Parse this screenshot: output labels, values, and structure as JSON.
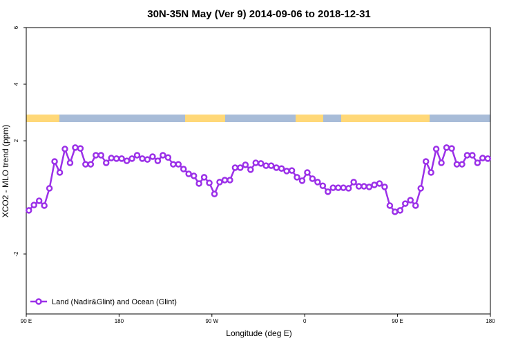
{
  "chart_data": {
    "type": "line",
    "title": "30N-35N May (Ver 9)   2014-09-06 to 2018-12-31",
    "x_label": "Longitude (deg E)",
    "y_label": "XCO2 - MLO trend (ppm)",
    "x": [
      92.5,
      97.5,
      102.5,
      107.5,
      112.5,
      117.5,
      122.5,
      127.5,
      132.5,
      137.5,
      142.5,
      147.5,
      152.5,
      157.5,
      162.5,
      167.5,
      172.5,
      177.5,
      182.5,
      187.5,
      192.5,
      197.5,
      202.5,
      207.5,
      212.5,
      217.5,
      222.5,
      227.5,
      232.5,
      237.5,
      242.5,
      247.5,
      252.5,
      257.5,
      262.5,
      267.5,
      272.5,
      277.5,
      282.5,
      287.5,
      292.5,
      297.5,
      302.5,
      307.5,
      312.5,
      317.5,
      322.5,
      327.5,
      332.5,
      337.5,
      342.5,
      347.5,
      352.5,
      357.5,
      362.5,
      367.5,
      372.5,
      377.5,
      382.5,
      387.5,
      392.5,
      397.5,
      402.5,
      407.5,
      412.5,
      417.5,
      422.5,
      427.5,
      432.5,
      437.5,
      442.5,
      447.5,
      452.5,
      457.5,
      462.5,
      467.5,
      472.5,
      477.5,
      482.5,
      487.5,
      492.5,
      497.5,
      502.5,
      507.5,
      512.5,
      517.5,
      522.5,
      527.5,
      532.5,
      537.5
    ],
    "series": [
      {
        "name": "Land (Nadir&Glint) and Ocean (Glint)",
        "color": "#9b30e8",
        "values": [
          -0.46,
          -0.27,
          -0.12,
          -0.29,
          0.32,
          1.27,
          0.88,
          1.71,
          1.22,
          1.76,
          1.73,
          1.17,
          1.17,
          1.49,
          1.49,
          1.22,
          1.39,
          1.37,
          1.37,
          1.29,
          1.37,
          1.49,
          1.37,
          1.34,
          1.44,
          1.29,
          1.49,
          1.41,
          1.17,
          1.17,
          1.0,
          0.83,
          0.76,
          0.49,
          0.71,
          0.51,
          0.12,
          0.54,
          0.61,
          0.61,
          1.05,
          1.05,
          1.15,
          0.98,
          1.22,
          1.2,
          1.12,
          1.12,
          1.05,
          1.02,
          0.93,
          0.95,
          0.71,
          0.59,
          0.88,
          0.66,
          0.54,
          0.41,
          0.2,
          0.34,
          0.34,
          0.34,
          0.32,
          0.54,
          0.39,
          0.39,
          0.37,
          0.44,
          0.49,
          0.37,
          -0.29,
          -0.51,
          -0.46,
          -0.22,
          -0.1,
          -0.29,
          0.32,
          1.27,
          0.88,
          1.71,
          1.22,
          1.76,
          1.73,
          1.17,
          1.17,
          1.49,
          1.49,
          1.22,
          1.39,
          1.37
        ]
      }
    ],
    "xlim": [
      90,
      540
    ],
    "xticks": [
      {
        "value": 90,
        "label": "90 E"
      },
      180,
      {
        "value": 270,
        "label": "90 W"
      },
      {
        "value": 360,
        "label": "0"
      },
      {
        "value": 450,
        "label": "90 E"
      },
      {
        "value": 540,
        "label": "180"
      }
    ],
    "ylim": [
      -4.12,
      6
    ],
    "yticks": [
      6,
      4,
      2,
      -2
    ],
    "legend": "bottom-left"
  }
}
